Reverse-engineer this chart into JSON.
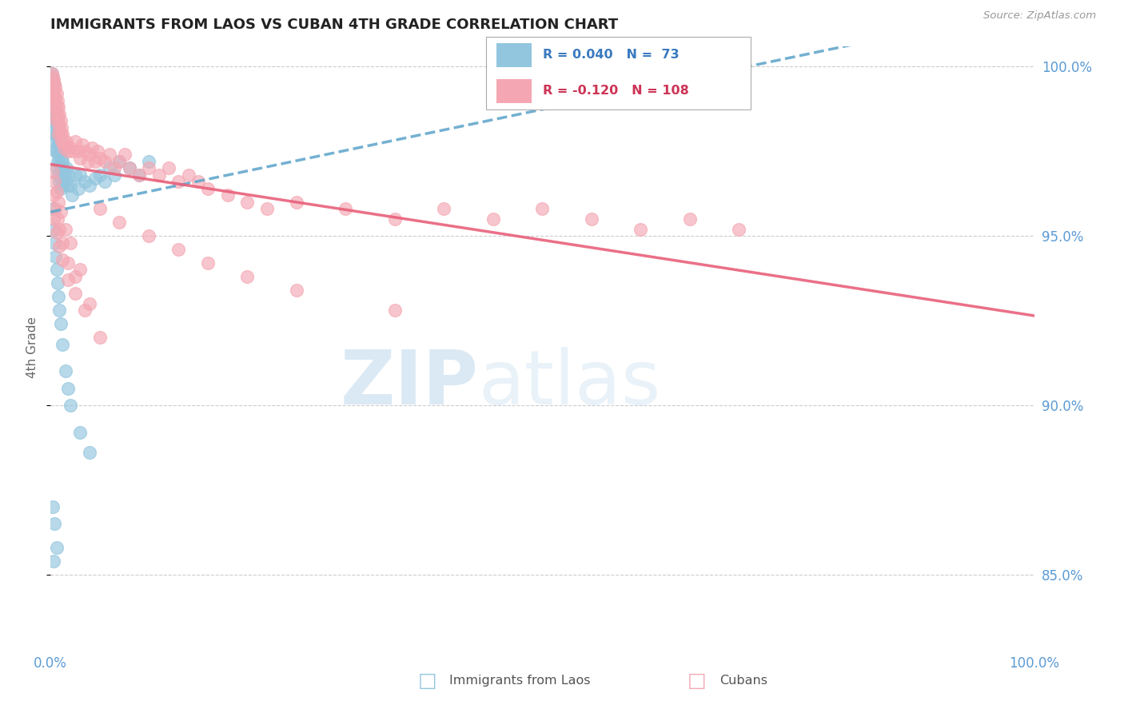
{
  "title": "IMMIGRANTS FROM LAOS VS CUBAN 4TH GRADE CORRELATION CHART",
  "source": "Source: ZipAtlas.com",
  "ylabel": "4th Grade",
  "blue_color": "#92c5de",
  "pink_color": "#f4a7b2",
  "blue_line_color": "#5ba3c9",
  "pink_line_color": "#e8607a",
  "watermark_zip": "ZIP",
  "watermark_atlas": "atlas",
  "xlim": [
    0.0,
    1.0
  ],
  "ylim": [
    0.828,
    1.006
  ],
  "yticks": [
    0.85,
    0.9,
    0.95,
    1.0
  ],
  "ytick_labels": [
    "85.0%",
    "90.0%",
    "95.0%",
    "100.0%"
  ],
  "blue_scatter_x": [
    0.001,
    0.002,
    0.002,
    0.003,
    0.003,
    0.003,
    0.004,
    0.004,
    0.004,
    0.005,
    0.005,
    0.005,
    0.005,
    0.006,
    0.006,
    0.006,
    0.006,
    0.007,
    0.007,
    0.007,
    0.008,
    0.008,
    0.008,
    0.009,
    0.009,
    0.009,
    0.01,
    0.01,
    0.01,
    0.011,
    0.011,
    0.012,
    0.012,
    0.013,
    0.014,
    0.015,
    0.016,
    0.017,
    0.018,
    0.02,
    0.022,
    0.025,
    0.028,
    0.03,
    0.035,
    0.04,
    0.045,
    0.05,
    0.055,
    0.06,
    0.065,
    0.07,
    0.08,
    0.09,
    0.1,
    0.002,
    0.003,
    0.004,
    0.005,
    0.006,
    0.007,
    0.008,
    0.009,
    0.01,
    0.012,
    0.015,
    0.018,
    0.02,
    0.03,
    0.04,
    0.002,
    0.004,
    0.006,
    0.003
  ],
  "blue_scatter_y": [
    0.998,
    0.996,
    0.992,
    0.995,
    0.988,
    0.984,
    0.99,
    0.986,
    0.98,
    0.987,
    0.983,
    0.978,
    0.975,
    0.985,
    0.98,
    0.975,
    0.97,
    0.982,
    0.977,
    0.972,
    0.98,
    0.974,
    0.968,
    0.978,
    0.972,
    0.966,
    0.975,
    0.97,
    0.964,
    0.973,
    0.967,
    0.972,
    0.965,
    0.97,
    0.968,
    0.966,
    0.97,
    0.965,
    0.968,
    0.965,
    0.962,
    0.968,
    0.964,
    0.968,
    0.966,
    0.965,
    0.967,
    0.968,
    0.966,
    0.97,
    0.968,
    0.972,
    0.97,
    0.968,
    0.972,
    0.958,
    0.952,
    0.948,
    0.944,
    0.94,
    0.936,
    0.932,
    0.928,
    0.924,
    0.918,
    0.91,
    0.905,
    0.9,
    0.892,
    0.886,
    0.87,
    0.865,
    0.858,
    0.854
  ],
  "pink_scatter_x": [
    0.001,
    0.001,
    0.002,
    0.002,
    0.002,
    0.003,
    0.003,
    0.003,
    0.004,
    0.004,
    0.004,
    0.005,
    0.005,
    0.005,
    0.006,
    0.006,
    0.006,
    0.007,
    0.007,
    0.008,
    0.008,
    0.008,
    0.009,
    0.009,
    0.01,
    0.01,
    0.011,
    0.011,
    0.012,
    0.013,
    0.014,
    0.015,
    0.016,
    0.018,
    0.02,
    0.022,
    0.025,
    0.028,
    0.03,
    0.032,
    0.035,
    0.038,
    0.04,
    0.042,
    0.045,
    0.048,
    0.05,
    0.055,
    0.06,
    0.065,
    0.07,
    0.075,
    0.08,
    0.09,
    0.1,
    0.11,
    0.12,
    0.13,
    0.14,
    0.15,
    0.16,
    0.18,
    0.2,
    0.22,
    0.25,
    0.3,
    0.35,
    0.4,
    0.45,
    0.5,
    0.55,
    0.6,
    0.65,
    0.7,
    0.002,
    0.004,
    0.006,
    0.008,
    0.01,
    0.015,
    0.02,
    0.03,
    0.003,
    0.005,
    0.007,
    0.009,
    0.012,
    0.018,
    0.025,
    0.04,
    0.05,
    0.07,
    0.1,
    0.13,
    0.16,
    0.2,
    0.25,
    0.35,
    0.003,
    0.006,
    0.009,
    0.012,
    0.018,
    0.025,
    0.035,
    0.05
  ],
  "pink_scatter_y": [
    0.998,
    0.995,
    0.997,
    0.994,
    0.992,
    0.996,
    0.993,
    0.99,
    0.995,
    0.992,
    0.988,
    0.994,
    0.99,
    0.986,
    0.992,
    0.988,
    0.984,
    0.99,
    0.986,
    0.988,
    0.984,
    0.98,
    0.986,
    0.982,
    0.984,
    0.98,
    0.982,
    0.978,
    0.98,
    0.978,
    0.976,
    0.977,
    0.978,
    0.975,
    0.976,
    0.975,
    0.978,
    0.975,
    0.973,
    0.977,
    0.975,
    0.972,
    0.974,
    0.976,
    0.972,
    0.975,
    0.973,
    0.972,
    0.974,
    0.97,
    0.972,
    0.974,
    0.97,
    0.968,
    0.97,
    0.968,
    0.97,
    0.966,
    0.968,
    0.966,
    0.964,
    0.962,
    0.96,
    0.958,
    0.96,
    0.958,
    0.955,
    0.958,
    0.955,
    0.958,
    0.955,
    0.952,
    0.955,
    0.952,
    0.969,
    0.966,
    0.963,
    0.96,
    0.957,
    0.952,
    0.948,
    0.94,
    0.962,
    0.958,
    0.955,
    0.952,
    0.948,
    0.942,
    0.938,
    0.93,
    0.958,
    0.954,
    0.95,
    0.946,
    0.942,
    0.938,
    0.934,
    0.928,
    0.955,
    0.951,
    0.947,
    0.943,
    0.937,
    0.933,
    0.928,
    0.92
  ]
}
